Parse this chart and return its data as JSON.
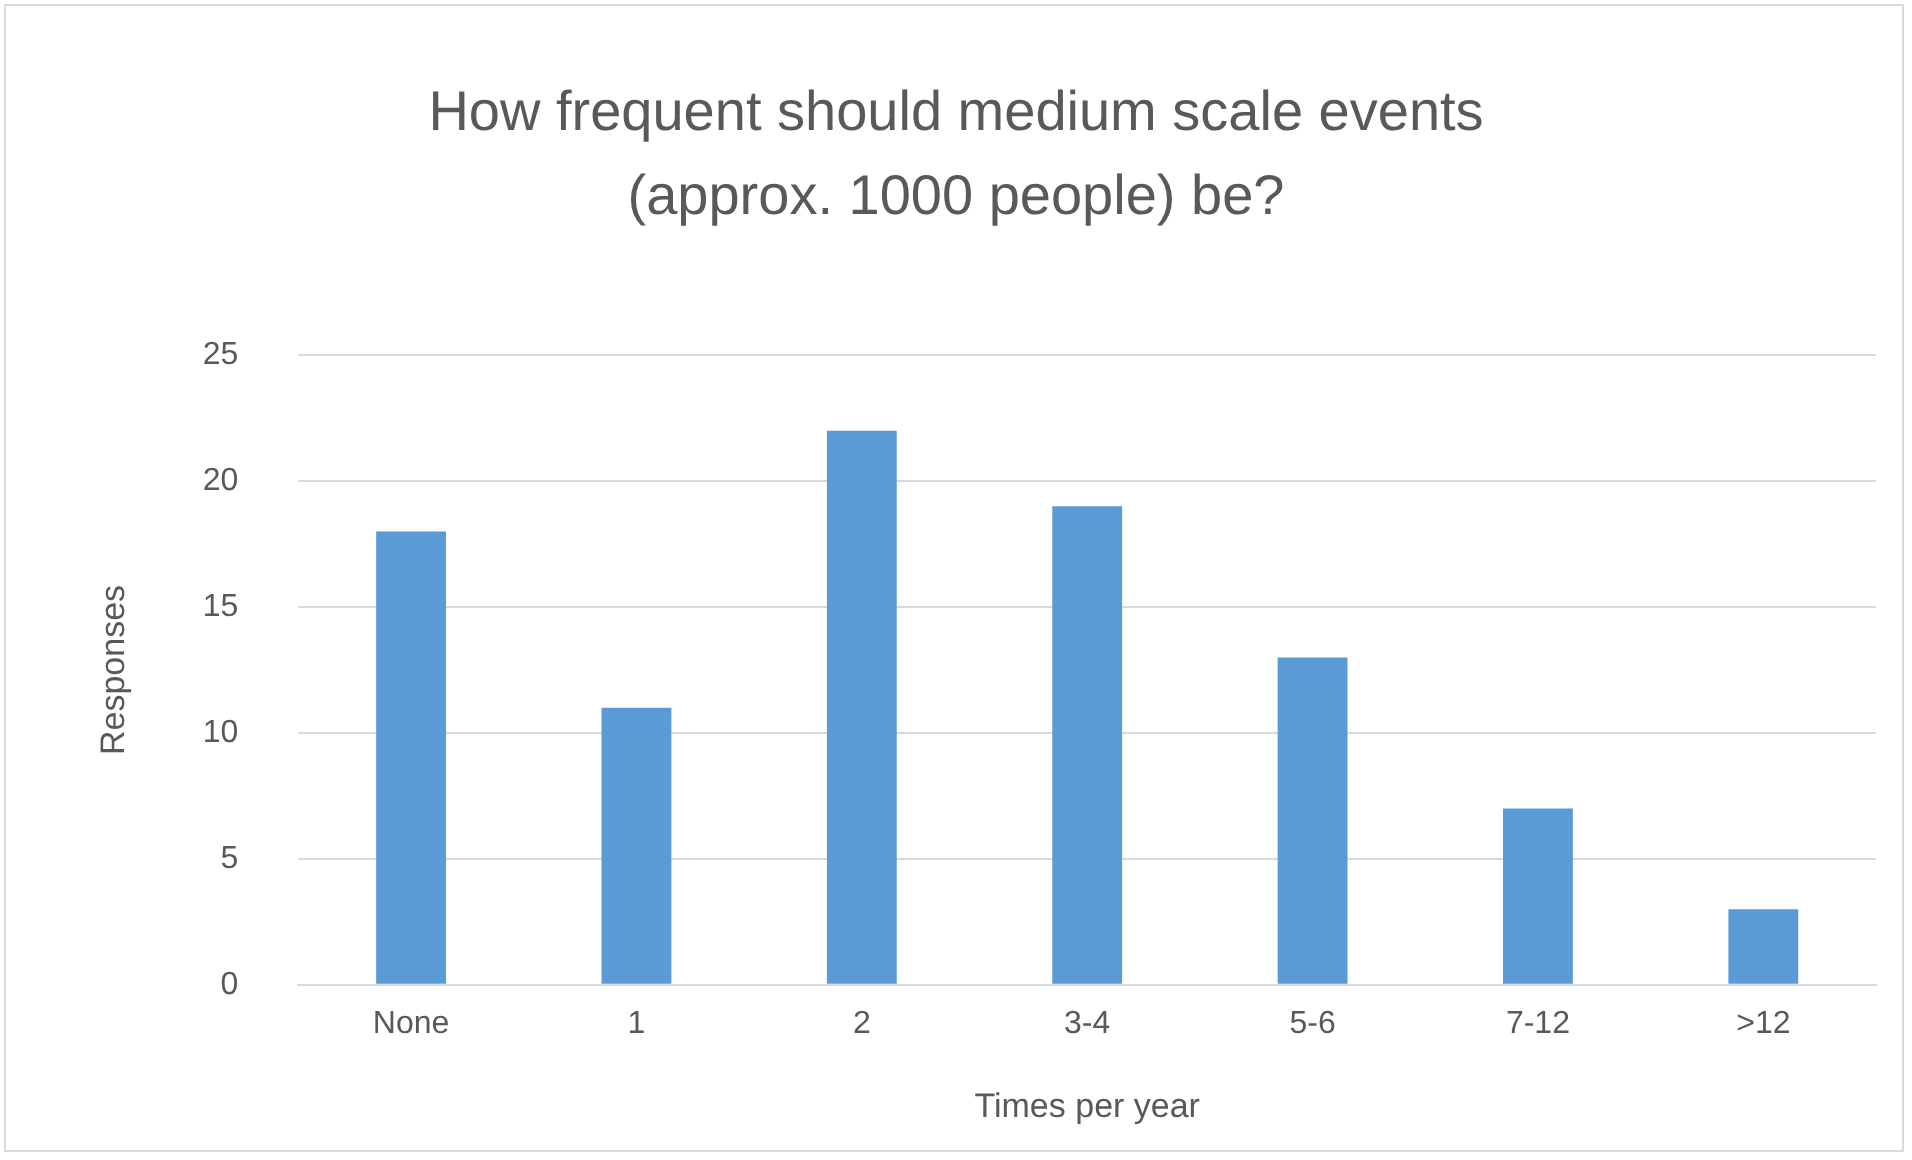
{
  "chart_data": {
    "type": "bar",
    "title": "How frequent should medium scale events\n(approx. 1000 people) be?",
    "xlabel": "Times per year",
    "ylabel": "Responses",
    "categories": [
      "None",
      "1",
      "2",
      "3-4",
      "5-6",
      "7-12",
      ">12"
    ],
    "values": [
      18,
      11,
      22,
      19,
      13,
      7,
      3
    ],
    "color": "#5b9bd5",
    "ylim": [
      0,
      25
    ],
    "yticks": [
      0,
      5,
      10,
      15,
      20,
      25
    ],
    "grid": "y"
  }
}
